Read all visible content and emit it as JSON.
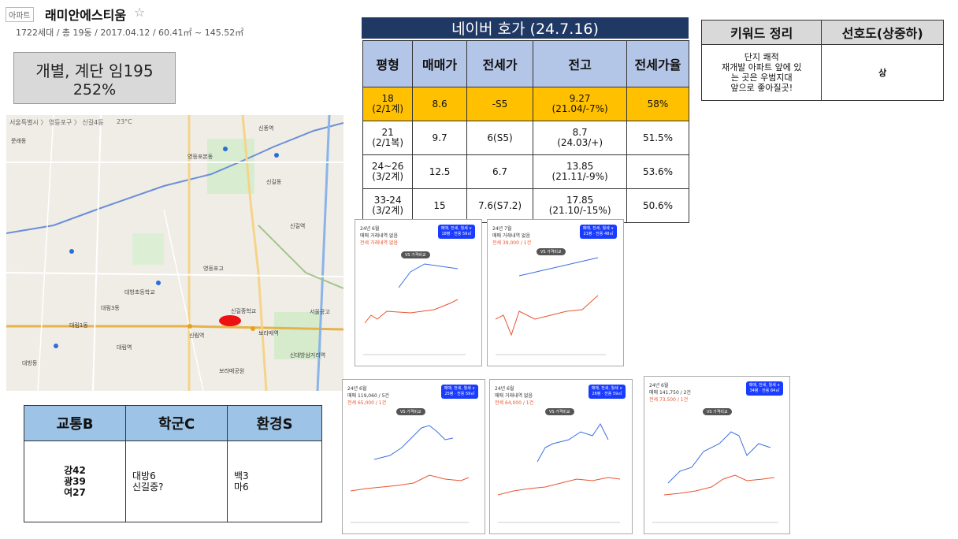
{
  "header": {
    "tag": "아파트",
    "name": "래미안에스티움",
    "star": "☆",
    "info": "1722세대 / 총 19동 / 2017.04.12 / 60.41㎡ ~ 145.52㎡"
  },
  "graybox": {
    "line1": "개별, 계단 임195",
    "line2": "252%"
  },
  "map": {
    "breadcrumb": "서울특별시 〉 영등포구 〉 신길4동",
    "weather": "23°C",
    "labels": [
      "문래동",
      "영등포본동",
      "신길동",
      "대방동",
      "신풍역",
      "신길역",
      "보라매역",
      "영등포고",
      "대방초등학교",
      "신길중학교",
      "서울공고",
      "대림역",
      "신대방삼거리역",
      "보라매공원",
      "대림1동",
      "대림3동",
      "신림역"
    ]
  },
  "naver": {
    "title": "네이버 호가 (24.7.16)",
    "headers": [
      "평형",
      "매매가",
      "전세가",
      "전고",
      "전세가율"
    ],
    "rows": [
      [
        "18\n(2/1계)",
        "8.6",
        "-S5",
        "9.27\n(21.04/-7%)",
        "58%"
      ],
      [
        "21\n(2/1복)",
        "9.7",
        "6(S5)",
        "8.7\n(24.03/+)",
        "51.5%"
      ],
      [
        "24~26\n(3/2계)",
        "12.5",
        "6.7",
        "13.85\n(21.11/-9%)",
        "53.6%"
      ],
      [
        "33-24\n(3/2계)",
        "15",
        "7.6(S7.2)",
        "17.85\n(21.10/-15%)",
        "50.6%"
      ]
    ]
  },
  "keyword": {
    "headers": [
      "키워드 정리",
      "선호도(상중하)"
    ],
    "text": "단지 쾌적\n재개발 아파트 앞에 있\n는 곳은 우범지대\n앞으로 좋아질곳!",
    "rating": "상"
  },
  "table3": {
    "headers": [
      "교통B",
      "학군C",
      "환경S"
    ],
    "cells": [
      "강42\n광39\n여27",
      "대방6\n신길중?",
      "백3\n마6"
    ]
  },
  "cards": [
    {
      "line1": "24년 6월",
      "line2": "매매 거래내역 없음",
      "line3": "전세 거래내역 없음",
      "button": "매매, 전세, 월세 ∨\n18평 · 전용 59㎡",
      "vs": "VS 가격비교"
    },
    {
      "line1": "24년 7월",
      "line2": "매매 거래내역 없음",
      "line3": "전세 39,000 / 1건",
      "button": "매매, 전세, 월세 ∨\n21평 · 전용 48㎡",
      "vs": "VS 가격비교"
    },
    {
      "line1": "24년 6월",
      "line2": "매매 119,060 / 5건",
      "line3": "전세 65,000 / 1건",
      "button": "매매, 전세, 월세 ∨\n25평 · 전용 59㎡",
      "vs": "VS 가격비교"
    },
    {
      "line1": "24년 6월",
      "line2": "매매 거래내역 없음",
      "line3": "전세 64,000 / 1건",
      "button": "매매, 전세, 월세 ∨\n26평 · 전용 59㎡",
      "vs": "VS 가격비교"
    },
    {
      "line1": "24년 6월",
      "line2": "매매 141,750 / 2건",
      "line3": "전세 73,500 / 1건",
      "button": "매매, 전세, 월세 ∨\n34평 · 전용 84㎡",
      "vs": "VS 가격비교"
    }
  ],
  "colors": {
    "navy": "#1f3864",
    "highlight": "#ffc000",
    "lightblue": "#b4c6e7",
    "tbl3head": "#9dc3e6",
    "buy": "#3b6fe0",
    "rent": "#e8542f"
  }
}
